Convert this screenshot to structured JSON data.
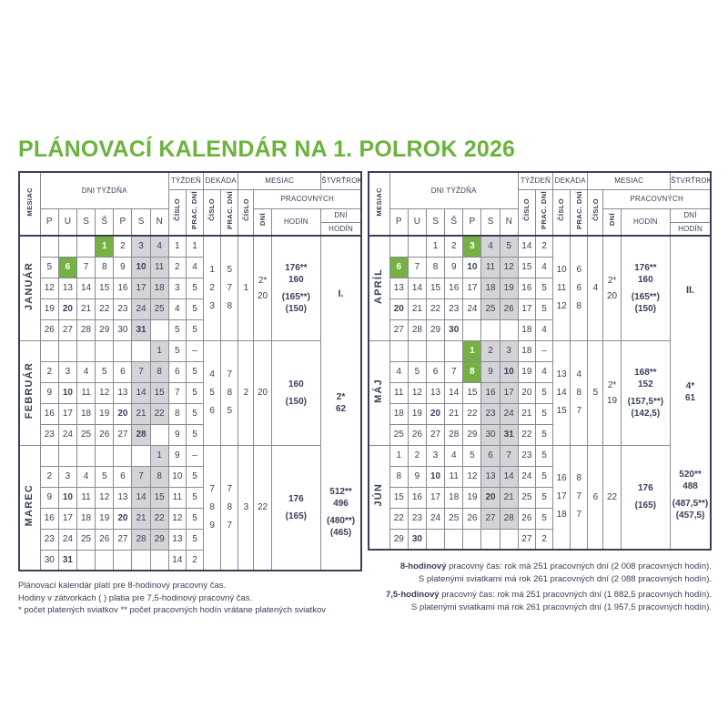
{
  "title": "PLÁNOVACÍ KALENDÁR NA 1. POLROK 2026",
  "colors": {
    "title_green": "#6cb33e",
    "holiday_green": "#76b144",
    "weekend_gray": "#d4d4d8",
    "text_navy": "#3a4059",
    "grid_gray": "#8a8a92"
  },
  "header": {
    "mesiac_col": "MESIAC",
    "dni_tyzdna": "DNI TÝŽDŇA",
    "day_letters": [
      "P",
      "U",
      "S",
      "Š",
      "P",
      "S",
      "N"
    ],
    "tyzden": "TÝŽDEŇ",
    "dekada": "DEKÁDA",
    "mesiac_group": "MESIAC",
    "stvrtrok": "ŠTVRŤROK",
    "cislo": "ČÍSLO",
    "prac_dni": "PRAC. DNÍ",
    "pracovnych": "PRACOVNÝCH",
    "dni": "DNÍ",
    "hodin": "HODÍN"
  },
  "tables": [
    {
      "months": [
        {
          "name": "JANUÁR",
          "num": "1",
          "weeks": [
            {
              "d": [
                "",
                "",
                "",
                "1g",
                "2",
                "3w",
                "4w"
              ],
              "w": "1",
              "p": "1"
            },
            {
              "d": [
                "5",
                "6g",
                "7",
                "8",
                "9",
                "10wb",
                "11w"
              ],
              "w": "2",
              "p": "4"
            },
            {
              "d": [
                "12",
                "13",
                "14",
                "15",
                "16",
                "17w",
                "18w"
              ],
              "w": "3",
              "p": "5"
            },
            {
              "d": [
                "19",
                "20b",
                "21",
                "22",
                "23",
                "24w",
                "25w"
              ],
              "w": "4",
              "p": "5"
            },
            {
              "d": [
                "26",
                "27",
                "28",
                "29",
                "30",
                "31wb",
                ""
              ],
              "w": "5",
              "p": "5"
            }
          ],
          "dek_c": [
            "1",
            "2",
            "3"
          ],
          "dek_p": [
            "5",
            "7",
            "8"
          ],
          "dni": [
            "2*",
            "20"
          ],
          "hodiny": [
            "176**",
            "160",
            "",
            "(165**)",
            "(150)"
          ]
        },
        {
          "name": "FEBRUÁR",
          "num": "2",
          "weeks": [
            {
              "d": [
                "",
                "",
                "",
                "",
                "",
                "",
                "1w"
              ],
              "w": "5",
              "p": "–"
            },
            {
              "d": [
                "2",
                "3",
                "4",
                "5",
                "6",
                "7w",
                "8w"
              ],
              "w": "6",
              "p": "5"
            },
            {
              "d": [
                "9",
                "10b",
                "11",
                "12",
                "13",
                "14w",
                "15w"
              ],
              "w": "7",
              "p": "5"
            },
            {
              "d": [
                "16",
                "17",
                "18",
                "19",
                "20b",
                "21w",
                "22w"
              ],
              "w": "8",
              "p": "5"
            },
            {
              "d": [
                "23",
                "24",
                "25",
                "26",
                "27",
                "28wb",
                ""
              ],
              "w": "9",
              "p": "5"
            }
          ],
          "dek_c": [
            "4",
            "5",
            "6"
          ],
          "dek_p": [
            "7",
            "8",
            "5"
          ],
          "dni": [
            "20"
          ],
          "hodiny": [
            "160",
            "",
            "(150)"
          ]
        },
        {
          "name": "MAREC",
          "num": "3",
          "weeks": [
            {
              "d": [
                "",
                "",
                "",
                "",
                "",
                "",
                "1w"
              ],
              "w": "9",
              "p": "–"
            },
            {
              "d": [
                "2",
                "3",
                "4",
                "5",
                "6",
                "7w",
                "8w"
              ],
              "w": "10",
              "p": "5"
            },
            {
              "d": [
                "9",
                "10b",
                "11",
                "12",
                "13",
                "14w",
                "15w"
              ],
              "w": "11",
              "p": "5"
            },
            {
              "d": [
                "16",
                "17",
                "18",
                "19",
                "20b",
                "21w",
                "22w"
              ],
              "w": "12",
              "p": "5"
            },
            {
              "d": [
                "23",
                "24",
                "25",
                "26",
                "27",
                "28w",
                "29w"
              ],
              "w": "13",
              "p": "5"
            },
            {
              "d": [
                "30",
                "31b",
                "",
                "",
                "",
                "",
                ""
              ],
              "w": "14",
              "p": "2"
            }
          ],
          "dek_c": [
            "7",
            "8",
            "9"
          ],
          "dek_p": [
            "7",
            "8",
            "7"
          ],
          "dni": [
            "22"
          ],
          "hodiny": [
            "176",
            "",
            "(165)"
          ]
        }
      ],
      "quarter": {
        "label": "I.",
        "mid": [
          "2*",
          "62"
        ],
        "bottom": [
          "512**",
          "496",
          "",
          "(480**)",
          "(465)"
        ]
      }
    },
    {
      "months": [
        {
          "name": "APRÍL",
          "num": "4",
          "weeks": [
            {
              "d": [
                "",
                "",
                "1",
                "2",
                "3g",
                "4w",
                "5w"
              ],
              "w": "14",
              "p": "2"
            },
            {
              "d": [
                "6g",
                "7",
                "8",
                "9",
                "10b",
                "11w",
                "12w"
              ],
              "w": "15",
              "p": "4"
            },
            {
              "d": [
                "13",
                "14",
                "15",
                "16",
                "17",
                "18w",
                "19w"
              ],
              "w": "16",
              "p": "5"
            },
            {
              "d": [
                "20b",
                "21",
                "22",
                "23",
                "24",
                "25w",
                "26w"
              ],
              "w": "17",
              "p": "5"
            },
            {
              "d": [
                "27",
                "28",
                "29",
                "30b",
                "",
                "",
                ""
              ],
              "w": "18",
              "p": "4"
            }
          ],
          "dek_c": [
            "10",
            "11",
            "12"
          ],
          "dek_p": [
            "6",
            "6",
            "8"
          ],
          "dni": [
            "2*",
            "20"
          ],
          "hodiny": [
            "176**",
            "160",
            "",
            "(165**)",
            "(150)"
          ]
        },
        {
          "name": "MÁJ",
          "num": "5",
          "weeks": [
            {
              "d": [
                "",
                "",
                "",
                "",
                "1g",
                "2w",
                "3w"
              ],
              "w": "18",
              "p": "–"
            },
            {
              "d": [
                "4",
                "5",
                "6",
                "7",
                "8g",
                "9w",
                "10wb"
              ],
              "w": "19",
              "p": "4"
            },
            {
              "d": [
                "11",
                "12",
                "13",
                "14",
                "15",
                "16w",
                "17w"
              ],
              "w": "20",
              "p": "5"
            },
            {
              "d": [
                "18",
                "19",
                "20b",
                "21",
                "22",
                "23w",
                "24w"
              ],
              "w": "21",
              "p": "5"
            },
            {
              "d": [
                "25",
                "26",
                "27",
                "28",
                "29",
                "30w",
                "31wb"
              ],
              "w": "22",
              "p": "5"
            }
          ],
          "dek_c": [
            "13",
            "14",
            "15"
          ],
          "dek_p": [
            "4",
            "8",
            "7"
          ],
          "dni": [
            "2*",
            "19"
          ],
          "hodiny": [
            "168**",
            "152",
            "",
            "(157,5**)",
            "(142,5)"
          ]
        },
        {
          "name": "JÚN",
          "num": "6",
          "weeks": [
            {
              "d": [
                "1",
                "2",
                "3",
                "4",
                "5",
                "6w",
                "7w"
              ],
              "w": "23",
              "p": "5"
            },
            {
              "d": [
                "8",
                "9",
                "10b",
                "11",
                "12",
                "13w",
                "14w"
              ],
              "w": "24",
              "p": "5"
            },
            {
              "d": [
                "15",
                "16",
                "17",
                "18",
                "19",
                "20wb",
                "21w"
              ],
              "w": "25",
              "p": "5"
            },
            {
              "d": [
                "22",
                "23",
                "24",
                "25",
                "26",
                "27w",
                "28w"
              ],
              "w": "26",
              "p": "5"
            },
            {
              "d": [
                "29",
                "30b",
                "",
                "",
                "",
                "",
                ""
              ],
              "w": "27",
              "p": "2"
            }
          ],
          "dek_c": [
            "16",
            "17",
            "18"
          ],
          "dek_p": [
            "8",
            "7",
            "7"
          ],
          "dni": [
            "22"
          ],
          "hodiny": [
            "176",
            "",
            "(165)"
          ]
        }
      ],
      "quarter": {
        "label": "II.",
        "mid": [
          "4*",
          "61"
        ],
        "bottom": [
          "520**",
          "488",
          "",
          "(487,5**)",
          "(457,5)"
        ]
      }
    }
  ],
  "footnotes_left": [
    "Plánovací kalendár platí pre 8-hodinový pracovný čas.",
    "Hodiny v zátvorkách ( ) platia pre 7,5-hodinový pracovný čas.",
    "* počet platených sviatkov    ** počet pracovných hodín vrátane platených sviatkov"
  ],
  "footnotes_right": [
    {
      "bold": "8-hodinový",
      "rest": " pracovný čas: rok má 251 pracovných dní (2 008 pracovných hodín)."
    },
    {
      "bold": "",
      "rest": "S platenými sviatkami má rok 261 pracovných dní (2 088 pracovných hodín)."
    },
    {
      "bold": "7,5-hodinový",
      "rest": " pracovný čas: rok má 251 pracovných dní (1 882,5 pracovných hodín)."
    },
    {
      "bold": "",
      "rest": "S platenými sviatkami má rok 261 pracovných dní (1 957,5 pracovných hodín)."
    }
  ]
}
